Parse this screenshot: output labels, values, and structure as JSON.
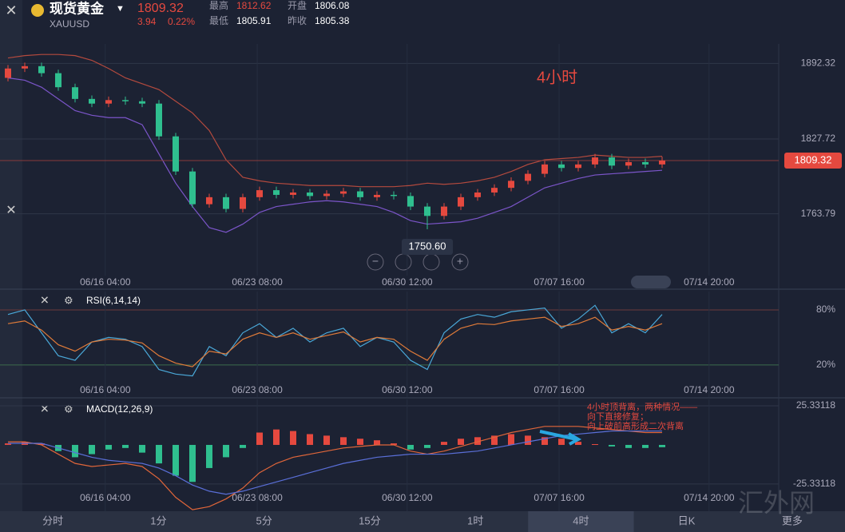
{
  "header": {
    "name": "现货黄金",
    "symbol": "XAUUSD",
    "price": "1809.32",
    "change": "3.94",
    "change_pct": "0.22%",
    "stats": [
      {
        "label": "最高",
        "value": "1812.62"
      },
      {
        "label": "开盘",
        "value": "1806.08"
      },
      {
        "label": "最低",
        "value": "1805.91"
      },
      {
        "label": "昨收",
        "value": "1805.38"
      }
    ]
  },
  "tabs": [
    "分时",
    "1分",
    "5分",
    "15分",
    "1时",
    "4时",
    "日K",
    "更多"
  ],
  "active_tab": "4时",
  "watermark": "汇外网",
  "chart_data": [
    {
      "type": "candlestick",
      "annotation": "4小时",
      "low_label": "1750.60",
      "current": {
        "value": 1809.32,
        "label": "1809.32"
      },
      "up_color": "#e5493f",
      "down_color": "#2fbf8f",
      "open": [
        1880,
        1888,
        1890,
        1884,
        1872,
        1862,
        1858,
        1861,
        1860,
        1858,
        1830,
        1800,
        1772,
        1778,
        1768,
        1778,
        1784,
        1780,
        1782,
        1779,
        1781,
        1783,
        1778,
        1780,
        1779,
        1770,
        1762,
        1770,
        1778,
        1782,
        1786,
        1792,
        1798,
        1806,
        1803,
        1806,
        1812,
        1805,
        1808,
        1806
      ],
      "high": [
        1891,
        1893,
        1893,
        1887,
        1875,
        1865,
        1864,
        1864,
        1863,
        1861,
        1833,
        1803,
        1781,
        1781,
        1781,
        1787,
        1787,
        1785,
        1785,
        1784,
        1786,
        1786,
        1783,
        1783,
        1782,
        1773,
        1773,
        1781,
        1785,
        1789,
        1795,
        1801,
        1809,
        1809,
        1809,
        1815,
        1815,
        1811,
        1811,
        1812.62
      ],
      "low": [
        1877,
        1885,
        1881,
        1869,
        1859,
        1855,
        1855,
        1857,
        1855,
        1827,
        1797,
        1769,
        1769,
        1765,
        1765,
        1775,
        1777,
        1777,
        1776,
        1776,
        1778,
        1775,
        1775,
        1776,
        1767,
        1750.6,
        1759,
        1767,
        1775,
        1779,
        1783,
        1789,
        1795,
        1800,
        1800,
        1803,
        1802,
        1802,
        1803,
        1803
      ],
      "close": [
        1888,
        1890,
        1884,
        1872,
        1862,
        1858,
        1861,
        1860,
        1858,
        1830,
        1800,
        1772,
        1778,
        1768,
        1778,
        1784,
        1780,
        1782,
        1779,
        1781,
        1783,
        1778,
        1780,
        1779,
        1770,
        1762,
        1770,
        1778,
        1782,
        1786,
        1792,
        1798,
        1806,
        1803,
        1806,
        1812,
        1805,
        1808,
        1806,
        1809.32
      ],
      "series": [
        {
          "color": "#b44a3e",
          "values": [
            1897,
            1899,
            1900,
            1900,
            1899,
            1895,
            1888,
            1880,
            1875,
            1870,
            1860,
            1850,
            1835,
            1810,
            1795,
            1792,
            1790,
            1789,
            1788,
            1788,
            1788,
            1787,
            1787,
            1787,
            1788,
            1790,
            1789,
            1790,
            1792,
            1795,
            1800,
            1806,
            1810,
            1811,
            1812,
            1814,
            1813,
            1812,
            1812,
            1813
          ]
        },
        {
          "color": "#7b55c9",
          "values": [
            1880,
            1878,
            1872,
            1862,
            1852,
            1848,
            1846,
            1846,
            1840,
            1815,
            1790,
            1770,
            1752,
            1748,
            1755,
            1765,
            1770,
            1772,
            1774,
            1775,
            1774,
            1772,
            1770,
            1765,
            1758,
            1755,
            1756,
            1757,
            1760,
            1765,
            1770,
            1778,
            1786,
            1790,
            1794,
            1797,
            1798,
            1799,
            1800,
            1801
          ]
        }
      ],
      "ylim": [
        1711,
        1909
      ],
      "yticks": [
        1892.32,
        1827.72,
        1763.79
      ],
      "xticks": [
        {
          "value": 5.8,
          "label": "06/16 04:00"
        },
        {
          "value": 14.86,
          "label": "06/23 08:00"
        },
        {
          "value": 23.8,
          "label": "06/30 12:00"
        },
        {
          "value": 32.86,
          "label": "07/07 16:00"
        },
        {
          "value": 41.8,
          "label": "07/14 20:00"
        }
      ]
    },
    {
      "type": "line",
      "title": "RSI(6,14,14)",
      "series": [
        {
          "color": "#4aa8d8",
          "values": [
            75,
            80,
            55,
            30,
            25,
            45,
            50,
            48,
            40,
            15,
            10,
            8,
            40,
            30,
            55,
            65,
            50,
            60,
            45,
            55,
            60,
            40,
            50,
            45,
            25,
            15,
            55,
            70,
            75,
            72,
            78,
            80,
            82,
            60,
            70,
            85,
            55,
            65,
            55,
            75
          ]
        },
        {
          "color": "#e07b39",
          "values": [
            65,
            68,
            58,
            42,
            35,
            45,
            48,
            47,
            44,
            30,
            22,
            18,
            35,
            32,
            48,
            55,
            50,
            55,
            48,
            52,
            56,
            45,
            50,
            48,
            35,
            25,
            48,
            60,
            65,
            64,
            68,
            70,
            72,
            62,
            65,
            72,
            58,
            62,
            58,
            65
          ]
        }
      ],
      "ylim": [
        -15,
        100
      ],
      "yticks": [
        {
          "value": 80,
          "label": "80%"
        },
        {
          "value": 20,
          "label": "20%"
        }
      ]
    },
    {
      "type": "macd",
      "title": "MACD(12,26,9)",
      "annotation": [
        "4小时顶背离，两种情况——",
        "向下直接修复；",
        "向上破前高形成二次背离"
      ],
      "up_color": "#e5493f",
      "down_color": "#2fbf8f",
      "values": [
        1,
        2,
        1,
        -4,
        -8,
        -6,
        -3,
        -2,
        -5,
        -12,
        -20,
        -24,
        -15,
        -8,
        -2,
        8,
        10,
        9,
        7,
        6,
        5,
        4,
        3,
        1,
        -3,
        -2,
        2,
        4,
        5,
        6,
        7,
        6,
        5,
        4,
        2,
        0.5,
        -1,
        -2,
        -2,
        -1.5
      ],
      "series": [
        {
          "color": "#e0663a",
          "values": [
            2,
            2,
            0,
            -6,
            -12,
            -14,
            -13,
            -12,
            -14,
            -22,
            -34,
            -42,
            -40,
            -35,
            -28,
            -18,
            -12,
            -8,
            -6,
            -4,
            -2,
            -1,
            0,
            0,
            -4,
            -6,
            -4,
            -1,
            2,
            5,
            8,
            10,
            12,
            12,
            12,
            11,
            10,
            9,
            8,
            8
          ]
        },
        {
          "color": "#5a6fd8",
          "values": [
            1,
            1,
            1,
            -2,
            -5,
            -8,
            -10,
            -11,
            -12,
            -15,
            -20,
            -26,
            -30,
            -32,
            -30,
            -27,
            -24,
            -21,
            -18,
            -15,
            -12,
            -10,
            -8,
            -7,
            -6,
            -6,
            -6,
            -5,
            -4,
            -2,
            0,
            2,
            4,
            6,
            7,
            8,
            9,
            9,
            9,
            9
          ]
        }
      ],
      "ylim": [
        -43,
        29.5
      ],
      "yticks": [
        25.33118,
        -25.33118
      ]
    }
  ]
}
